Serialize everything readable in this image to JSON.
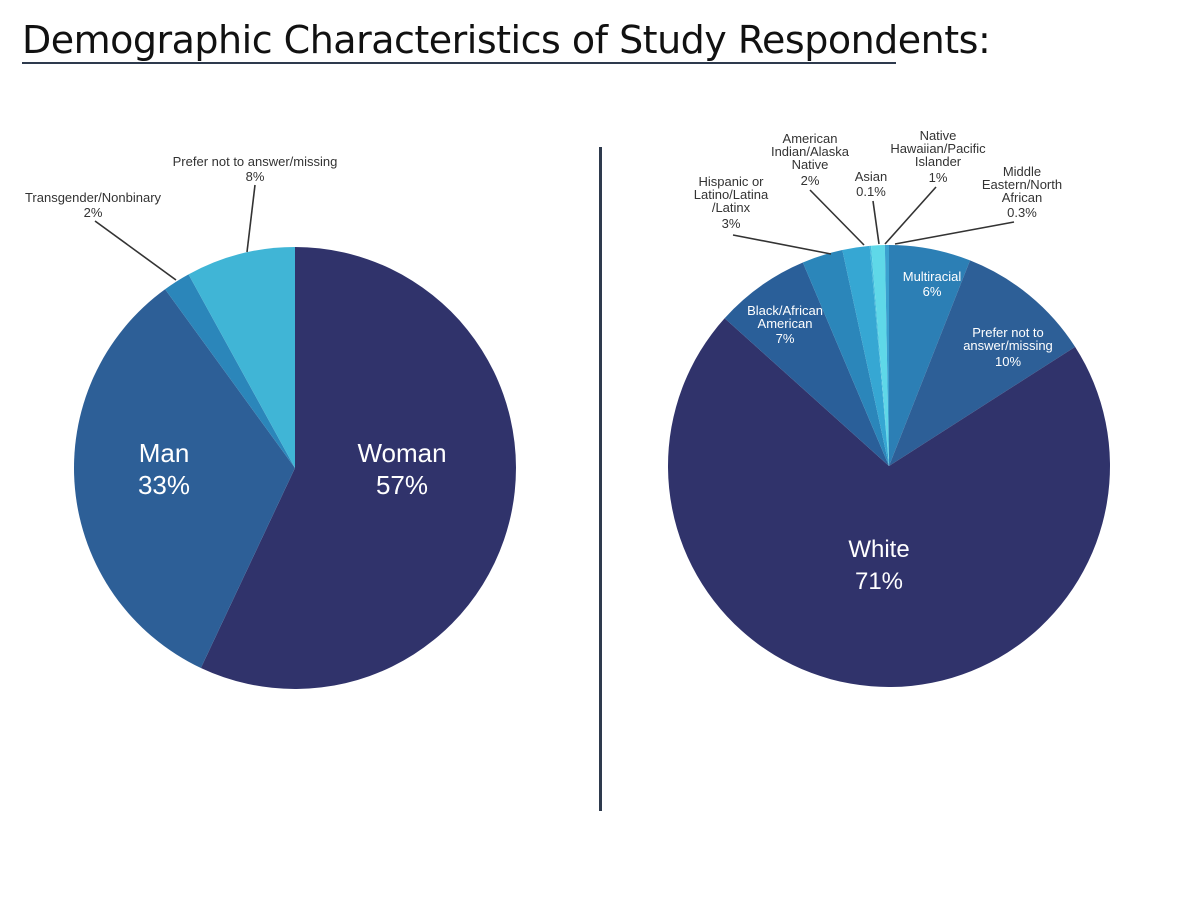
{
  "title": "Demographic Characteristics of Study Respondents:",
  "chart_data": [
    {
      "type": "pie",
      "title": "",
      "slices": [
        {
          "label": "Woman",
          "value": 57,
          "value_label": "57%",
          "color": "#30336b"
        },
        {
          "label": "Man",
          "value": 33,
          "value_label": "33%",
          "color": "#2d5f97"
        },
        {
          "label": "Transgender/Nonbinary",
          "value": 2,
          "value_label": "2%",
          "color": "#2b86ba"
        },
        {
          "label": "Prefer not to answer/missing",
          "value": 8,
          "value_label": "8%",
          "color": "#40b5d6"
        }
      ]
    },
    {
      "type": "pie",
      "title": "",
      "slices": [
        {
          "label": "White",
          "value": 71,
          "value_label": "71%",
          "color": "#30336b"
        },
        {
          "label": "Black/African American",
          "value": 7,
          "value_label": "7%",
          "color": "#2a5f99"
        },
        {
          "label": "Hispanic or Latino/Latina /Latinx",
          "value": 3,
          "value_label": "3%",
          "color": "#2b86ba"
        },
        {
          "label": "American Indian/Alaska Native",
          "value": 2,
          "value_label": "2%",
          "color": "#36a7d3"
        },
        {
          "label": "Asian",
          "value": 0.1,
          "value_label": "0.1%",
          "color": "#42b9db"
        },
        {
          "label": "Native Hawaiian/Pacific Islander",
          "value": 1,
          "value_label": "1%",
          "color": "#5fd8e8"
        },
        {
          "label": "Middle Eastern/North African",
          "value": 0.3,
          "value_label": "0.3%",
          "color": "#3aa0cf"
        },
        {
          "label": "Multiracial",
          "value": 6,
          "value_label": "6%",
          "color": "#2c7fb5"
        },
        {
          "label": "Prefer not to answer/missing",
          "value": 10,
          "value_label": "10%",
          "color": "#2d5f97"
        }
      ]
    }
  ]
}
